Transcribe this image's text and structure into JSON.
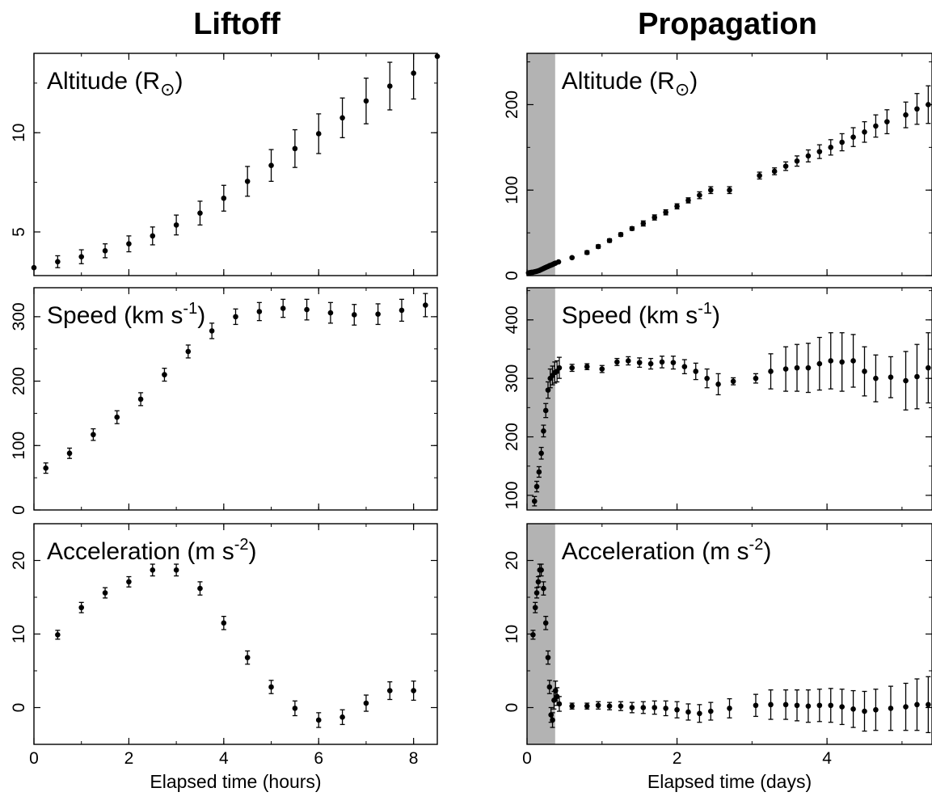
{
  "figure": {
    "left_title": "Liftoff",
    "right_title": "Propagation"
  },
  "chart_data": [
    {
      "id": "liftoff-altitude",
      "type": "scatter",
      "column": "left",
      "row": 0,
      "label": "Altitude (R",
      "label_symbol": "⊙",
      "label_close": ")",
      "xlabel": "",
      "xlim": [
        0,
        8.5
      ],
      "ylim": [
        2.8,
        14
      ],
      "xticks": [
        0,
        2,
        4,
        6,
        8
      ],
      "yticks": [
        5,
        10
      ],
      "show_xtick_labels": false,
      "show_yticks_left": true,
      "x": [
        0,
        0.5,
        1,
        1.5,
        2,
        2.5,
        3,
        3.5,
        4,
        4.5,
        5,
        5.5,
        6,
        6.5,
        7,
        7.5,
        8,
        8.5
      ],
      "y": [
        3.2,
        3.5,
        3.75,
        4.05,
        4.4,
        4.8,
        5.35,
        5.95,
        6.7,
        7.55,
        8.35,
        9.2,
        9.95,
        10.75,
        11.6,
        12.35,
        13.0,
        13.85
      ],
      "err": [
        0,
        0.3,
        0.35,
        0.35,
        0.4,
        0.45,
        0.5,
        0.6,
        0.65,
        0.75,
        0.8,
        0.95,
        1.0,
        1.0,
        1.15,
        1.2,
        1.3,
        0
      ]
    },
    {
      "id": "liftoff-speed",
      "type": "scatter",
      "column": "left",
      "row": 1,
      "label": "Speed (km s",
      "label_sup": "-1",
      "label_close": ")",
      "xlabel": "",
      "xlim": [
        0,
        8.5
      ],
      "ylim": [
        0,
        345
      ],
      "xticks": [
        0,
        2,
        4,
        6,
        8
      ],
      "yticks": [
        0,
        100,
        200,
        300
      ],
      "show_xtick_labels": false,
      "show_yticks_left": true,
      "x": [
        0.25,
        0.75,
        1.25,
        1.75,
        2.25,
        2.75,
        3.25,
        3.75,
        4.25,
        4.75,
        5.25,
        5.75,
        6.25,
        6.75,
        7.25,
        7.75,
        8.25
      ],
      "y": [
        65,
        88,
        117,
        144,
        172,
        210,
        246,
        278,
        300,
        308,
        313,
        311,
        306,
        303,
        304,
        310,
        318
      ],
      "err": [
        8,
        8,
        9,
        10,
        10,
        10,
        10,
        12,
        12,
        14,
        14,
        16,
        16,
        16,
        16,
        17,
        18
      ]
    },
    {
      "id": "liftoff-acceleration",
      "type": "scatter",
      "column": "left",
      "row": 2,
      "label": "Acceleration (m s",
      "label_sup": "-2",
      "label_close": ")",
      "xlabel": "Elapsed time (hours)",
      "xlim": [
        0,
        8.5
      ],
      "ylim": [
        -5,
        25
      ],
      "xticks": [
        0,
        2,
        4,
        6,
        8
      ],
      "yticks": [
        0,
        10,
        20
      ],
      "show_xtick_labels": true,
      "show_yticks_left": true,
      "x": [
        0.5,
        1,
        1.5,
        2,
        2.5,
        3,
        3.5,
        4,
        4.5,
        5,
        5.5,
        6,
        6.5,
        7,
        7.5,
        8
      ],
      "y": [
        9.9,
        13.6,
        15.6,
        17.1,
        18.7,
        18.7,
        16.2,
        11.5,
        6.8,
        2.8,
        -0.1,
        -1.7,
        -1.3,
        0.6,
        2.3,
        2.3
      ],
      "err": [
        0.6,
        0.7,
        0.7,
        0.7,
        0.8,
        0.8,
        0.9,
        0.9,
        0.9,
        0.9,
        1.0,
        1.0,
        1.0,
        1.1,
        1.2,
        1.3
      ]
    },
    {
      "id": "propagation-altitude",
      "type": "scatter",
      "column": "right",
      "row": 0,
      "label": "Altitude (R",
      "label_symbol": "⊙",
      "label_close": ")",
      "xlabel": "",
      "xlim": [
        0,
        5.4
      ],
      "ylim": [
        0,
        260
      ],
      "shade_xlim": [
        0,
        0.375
      ],
      "xticks": [
        0,
        2,
        4
      ],
      "yticks": [
        0,
        100,
        200
      ],
      "show_xtick_labels": false,
      "show_yticks_left": true,
      "x": [
        0.02,
        0.04,
        0.06,
        0.08,
        0.1,
        0.12,
        0.14,
        0.16,
        0.18,
        0.2,
        0.22,
        0.24,
        0.26,
        0.28,
        0.3,
        0.32,
        0.34,
        0.36,
        0.38,
        0.42,
        0.6,
        0.8,
        0.95,
        1.1,
        1.25,
        1.4,
        1.55,
        1.7,
        1.85,
        2.0,
        2.15,
        2.3,
        2.45,
        2.7,
        3.1,
        3.3,
        3.45,
        3.6,
        3.75,
        3.9,
        4.05,
        4.2,
        4.35,
        4.5,
        4.65,
        4.8,
        5.05,
        5.2,
        5.35
      ],
      "y": [
        3.2,
        3.5,
        3.8,
        4.0,
        4.4,
        4.8,
        5.3,
        5.9,
        6.7,
        7.5,
        8.3,
        9.2,
        10.0,
        10.7,
        11.6,
        12.3,
        13.0,
        13.9,
        14.6,
        16,
        21,
        27,
        34,
        41,
        48,
        55,
        61,
        68,
        74,
        81,
        88,
        94,
        100,
        100,
        117,
        122,
        128,
        134,
        140,
        145,
        150,
        156,
        162,
        168,
        175,
        180,
        188,
        195,
        200
      ],
      "err": [
        0,
        0,
        0,
        0,
        0,
        0,
        0,
        0,
        0,
        0,
        0,
        0,
        0,
        0,
        0,
        0,
        0,
        0,
        0,
        0,
        1,
        2,
        2,
        2,
        2,
        2,
        3,
        3,
        3,
        3,
        3,
        4,
        4,
        4,
        4,
        4,
        5,
        6,
        7,
        8,
        9,
        10,
        11,
        12,
        13,
        14,
        15,
        18,
        22
      ]
    },
    {
      "id": "propagation-speed",
      "type": "scatter",
      "column": "right",
      "row": 1,
      "label": "Speed (km s",
      "label_sup": "-1",
      "label_close": ")",
      "xlabel": "",
      "xlim": [
        0,
        5.4
      ],
      "ylim": [
        75,
        455
      ],
      "shade_xlim": [
        0,
        0.375
      ],
      "xticks": [
        0,
        2,
        4
      ],
      "yticks": [
        100,
        200,
        300,
        400
      ],
      "show_xtick_labels": false,
      "show_yticks_left": true,
      "x": [
        0.1,
        0.13,
        0.16,
        0.19,
        0.22,
        0.25,
        0.28,
        0.31,
        0.34,
        0.37,
        0.4,
        0.43,
        0.6,
        0.8,
        1.0,
        1.2,
        1.35,
        1.5,
        1.65,
        1.8,
        1.95,
        2.1,
        2.25,
        2.4,
        2.55,
        2.75,
        3.05,
        3.25,
        3.45,
        3.6,
        3.75,
        3.9,
        4.05,
        4.2,
        4.35,
        4.5,
        4.65,
        4.85,
        5.05,
        5.2,
        5.35
      ],
      "y": [
        90,
        115,
        140,
        172,
        210,
        245,
        280,
        300,
        305,
        310,
        312,
        318,
        318,
        320,
        316,
        328,
        330,
        327,
        325,
        328,
        327,
        320,
        312,
        300,
        290,
        295,
        300,
        312,
        316,
        318,
        318,
        325,
        330,
        328,
        330,
        312,
        300,
        302,
        296,
        303,
        318
      ],
      "err": [
        8,
        9,
        9,
        10,
        10,
        12,
        14,
        16,
        16,
        18,
        18,
        18,
        6,
        5,
        6,
        6,
        7,
        8,
        9,
        10,
        11,
        12,
        14,
        16,
        18,
        6,
        8,
        30,
        38,
        40,
        42,
        45,
        48,
        50,
        45,
        42,
        40,
        35,
        50,
        55,
        60
      ]
    },
    {
      "id": "propagation-acceleration",
      "type": "scatter",
      "column": "right",
      "row": 2,
      "label": "Acceleration (m s",
      "label_sup": "-2",
      "label_close": ")",
      "xlabel": "Elapsed time (days)",
      "xlim": [
        0,
        5.4
      ],
      "ylim": [
        -5,
        25
      ],
      "shade_xlim": [
        0,
        0.375
      ],
      "xticks": [
        0,
        2,
        4
      ],
      "yticks": [
        0,
        10,
        20
      ],
      "show_xtick_labels": true,
      "show_yticks_left": true,
      "x": [
        0.08,
        0.11,
        0.13,
        0.15,
        0.17,
        0.19,
        0.22,
        0.25,
        0.28,
        0.3,
        0.32,
        0.34,
        0.36,
        0.38,
        0.4,
        0.43,
        0.6,
        0.8,
        0.95,
        1.1,
        1.25,
        1.4,
        1.55,
        1.7,
        1.85,
        2.0,
        2.15,
        2.3,
        2.45,
        2.7,
        3.05,
        3.25,
        3.45,
        3.6,
        3.75,
        3.9,
        4.05,
        4.2,
        4.35,
        4.5,
        4.65,
        4.85,
        5.05,
        5.2,
        5.35
      ],
      "y": [
        9.9,
        13.6,
        15.6,
        17.1,
        18.7,
        18.7,
        16.2,
        11.5,
        6.8,
        2.8,
        -1.0,
        -1.7,
        1.0,
        2.3,
        1.5,
        0.5,
        0.2,
        0.2,
        0.3,
        0.2,
        0.2,
        0.0,
        0.0,
        0.0,
        -0.1,
        -0.3,
        -0.6,
        -0.8,
        -0.5,
        -0.1,
        0.3,
        0.4,
        0.4,
        0.3,
        0.2,
        0.3,
        0.3,
        0.1,
        -0.2,
        -0.5,
        -0.3,
        -0.1,
        0.1,
        0.4,
        0.4
      ],
      "err": [
        0.6,
        0.7,
        0.7,
        0.7,
        0.8,
        0.8,
        0.9,
        0.9,
        0.9,
        0.9,
        1.0,
        1.0,
        1.2,
        1.3,
        1.2,
        1.0,
        0.4,
        0.4,
        0.5,
        0.5,
        0.6,
        0.7,
        0.8,
        0.9,
        1.0,
        1.1,
        1.1,
        1.2,
        1.2,
        1.3,
        1.5,
        2.0,
        2.0,
        2.1,
        2.2,
        2.2,
        2.3,
        2.4,
        2.5,
        2.7,
        2.8,
        3.0,
        3.2,
        3.5,
        3.8
      ]
    }
  ]
}
